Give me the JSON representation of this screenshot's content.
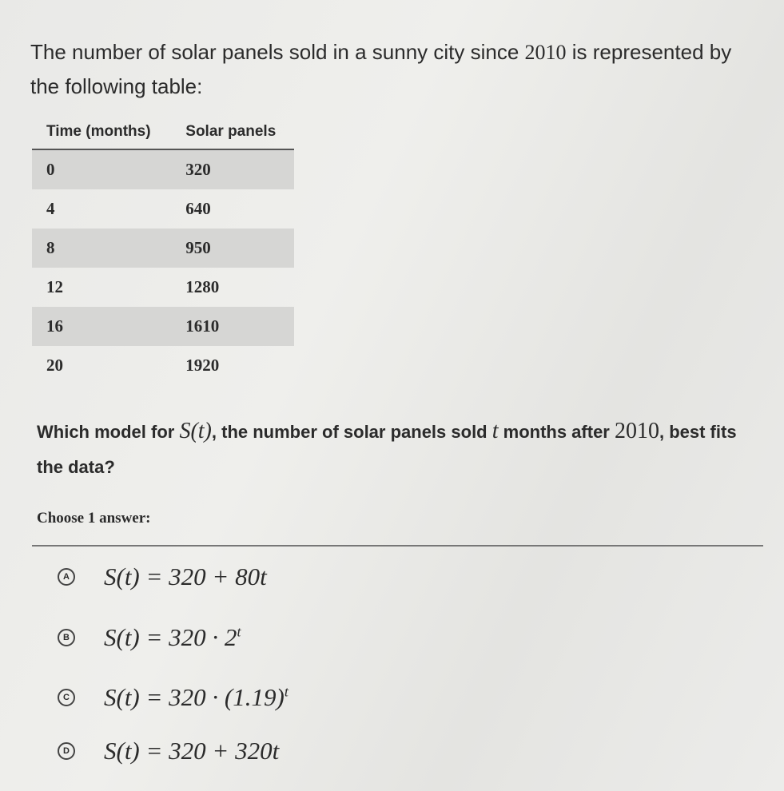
{
  "intro": [
    "The number of solar panels sold in a sunny city since ",
    "2010",
    " is represented by the following table:"
  ],
  "table": {
    "headers": [
      "Time (months)",
      "Solar panels"
    ],
    "rows": [
      [
        0,
        320
      ],
      [
        4,
        640
      ],
      [
        8,
        950
      ],
      [
        12,
        1280
      ],
      [
        16,
        1610
      ],
      [
        20,
        1920
      ]
    ]
  },
  "question": [
    "Which model for ",
    "S(t)",
    ", the number of solar panels sold ",
    "t",
    " months after ",
    "2010",
    ", best fits the data?"
  ],
  "choose_label": "Choose 1 answer:",
  "options": [
    {
      "letter": "A",
      "formula": "S(t) = 320 + 80t"
    },
    {
      "letter": "B",
      "formula": "S(t) = 320 · 2",
      "exponent": "t"
    },
    {
      "letter": "C",
      "formula": "S(t) = 320 · (1.19)",
      "exponent": "t"
    },
    {
      "letter": "D",
      "formula": "S(t) = 320 + 320t"
    }
  ]
}
